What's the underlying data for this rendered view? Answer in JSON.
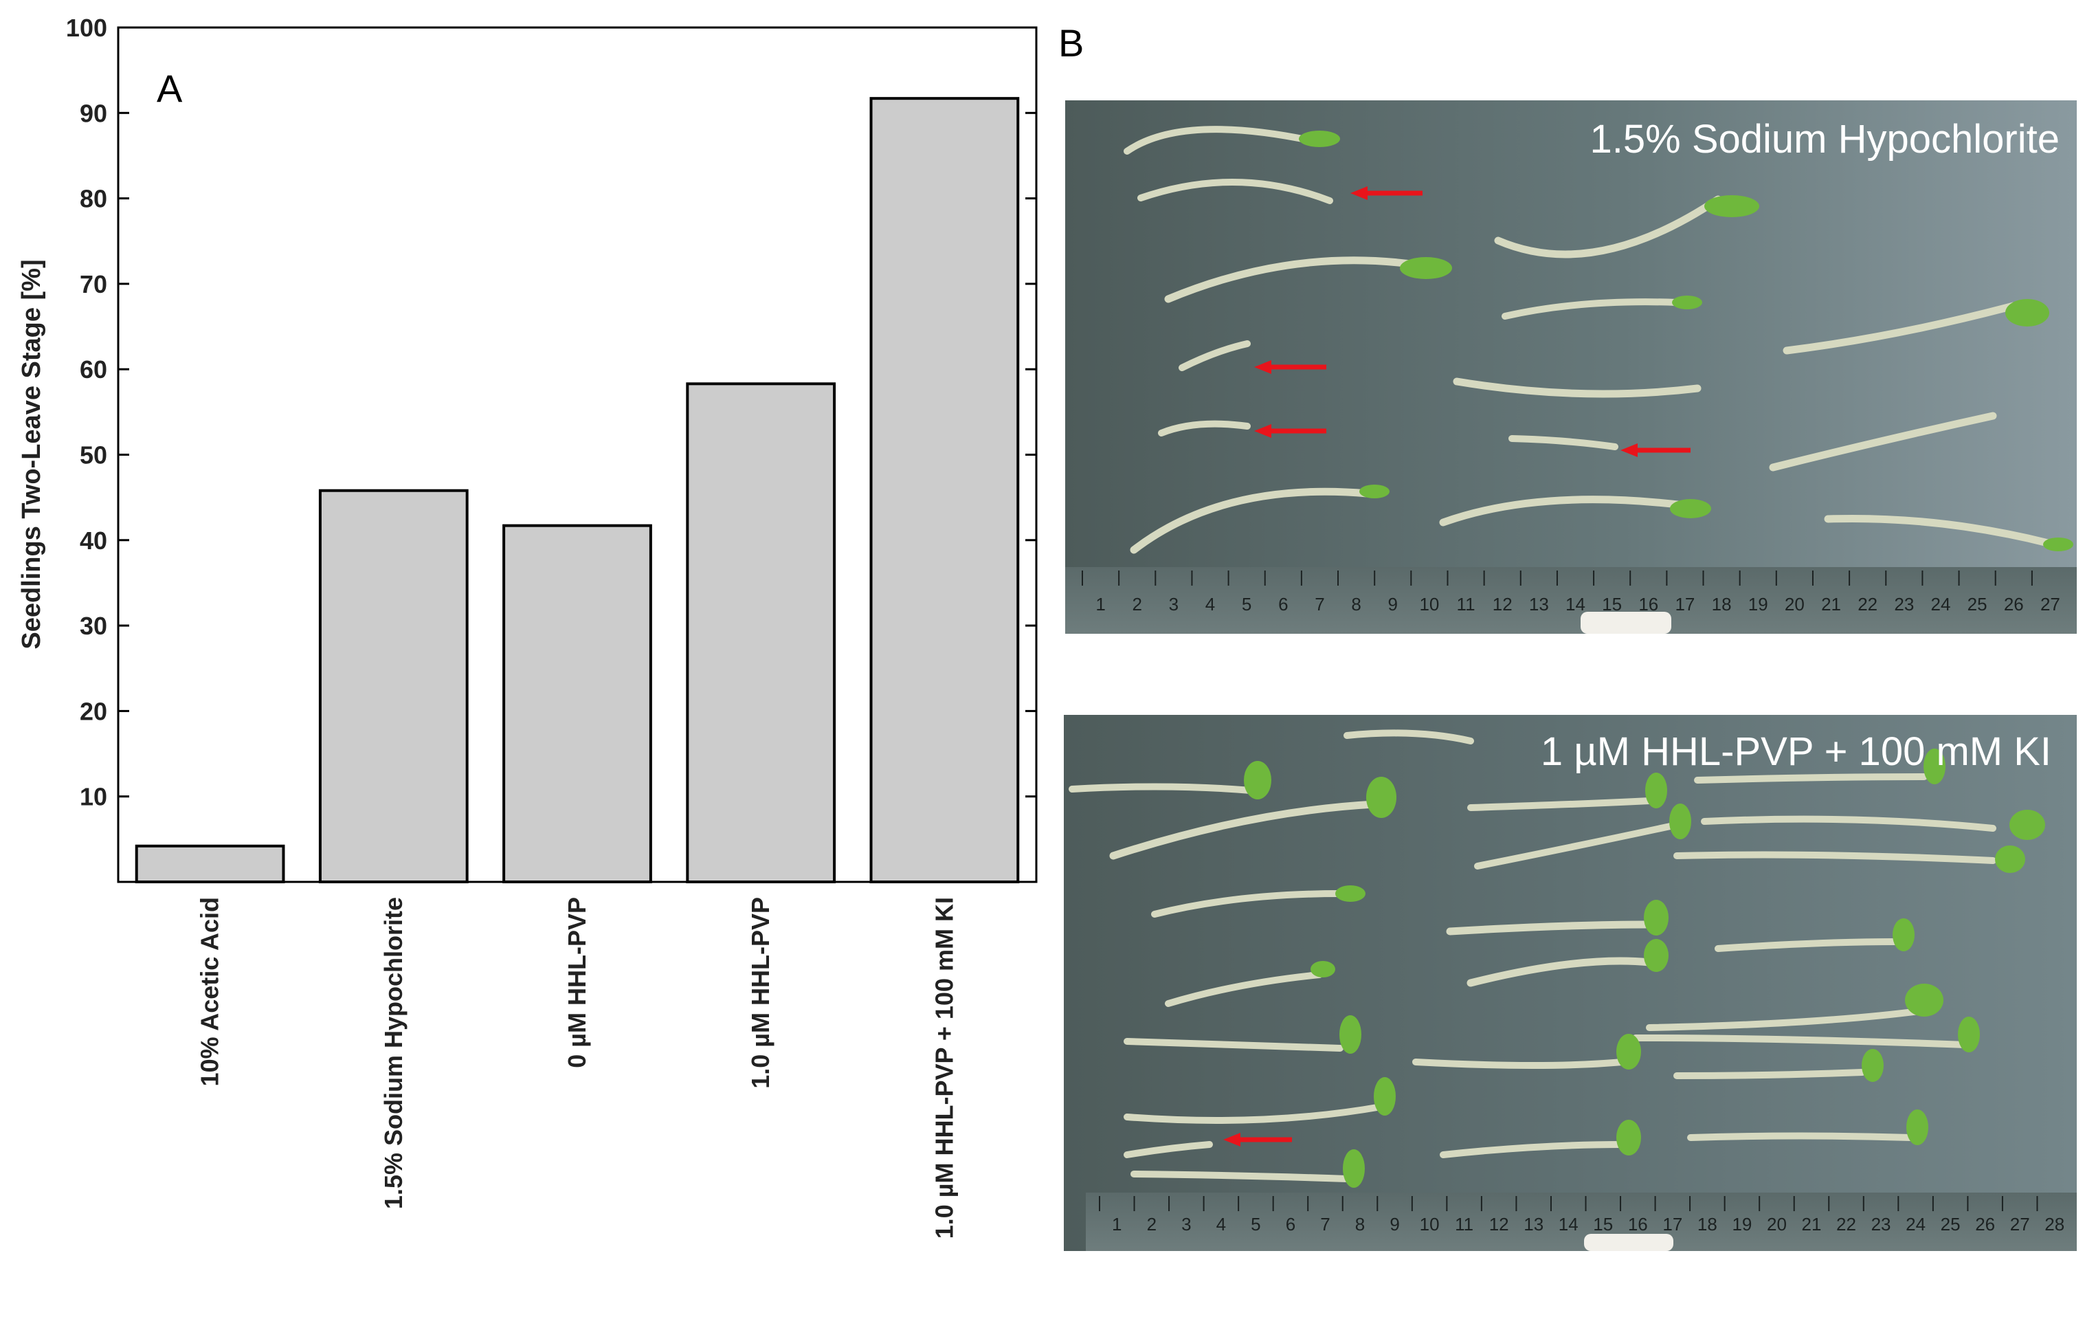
{
  "panel_a_label": "A",
  "panel_b_label": "B",
  "chart_data": {
    "type": "bar",
    "title": "",
    "xlabel": "",
    "ylabel": "Seedlings Two-Leave Stage [%]",
    "ylim": [
      0,
      100
    ],
    "yticks": [
      10,
      20,
      30,
      40,
      50,
      60,
      70,
      80,
      90,
      100
    ],
    "grid": false,
    "categories": [
      "10% Acetic Acid",
      "1.5% Sodium Hypochlorite",
      "0 µM HHL-PVP",
      "1.0 µM HHL-PVP",
      "1.0 µM HHL-PVP + 100 mM KI"
    ],
    "values": [
      4.2,
      45.8,
      41.7,
      58.3,
      91.7
    ],
    "bar_color": "#cccccc",
    "edge_color": "#000000"
  },
  "photos": [
    {
      "caption": "1.5% Sodium Hypochlorite",
      "ruler_labels": [
        "1",
        "2",
        "3",
        "4",
        "5",
        "6",
        "7",
        "8",
        "9",
        "10",
        "11",
        "12",
        "13",
        "14",
        "15",
        "16",
        "17",
        "18",
        "19",
        "20",
        "21",
        "22",
        "23",
        "24",
        "25",
        "26",
        "27"
      ]
    },
    {
      "caption": "1 µM HHL-PVP + 100 mM KI",
      "ruler_labels": [
        "1",
        "2",
        "3",
        "4",
        "5",
        "6",
        "7",
        "8",
        "9",
        "10",
        "11",
        "12",
        "13",
        "14",
        "15",
        "16",
        "17",
        "18",
        "19",
        "20",
        "21",
        "22",
        "23",
        "24",
        "25",
        "26",
        "27",
        "28"
      ]
    }
  ],
  "colors": {
    "background_photo": "#5a6b6a",
    "arrow": "#e8141b",
    "leaf": "#6fb83c",
    "stem": "#d8dcc2"
  }
}
